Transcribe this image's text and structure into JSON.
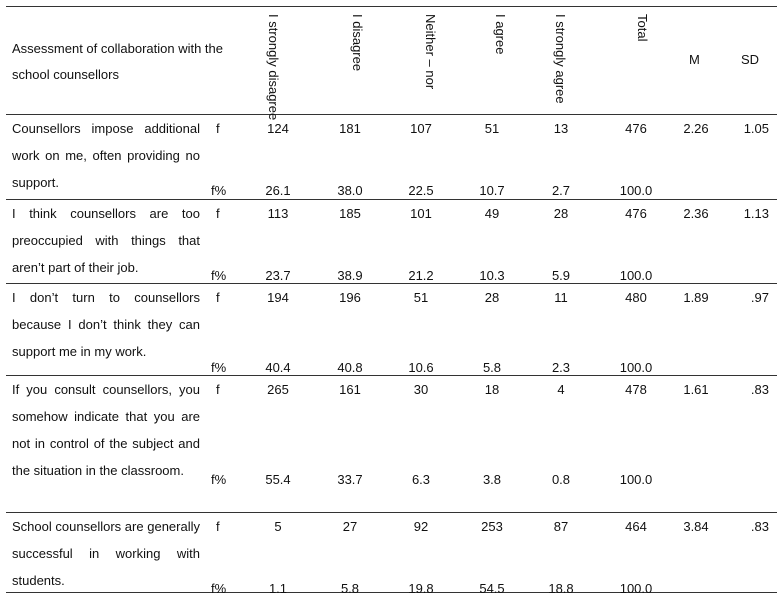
{
  "header": {
    "title": "Assessment of collaboration with the school counsellors",
    "col_strongly_disagree": "I strongly disagree",
    "col_disagree": "I disagree",
    "col_neither": "Neither – nor",
    "col_agree": "I agree",
    "col_strongly_agree": "I strongly agree",
    "col_total": "Total",
    "col_m": "M",
    "col_sd": "SD"
  },
  "rows": [
    {
      "statement": "Counsellors impose additional work on me, often providing no support.",
      "f_label": "f",
      "fp_label": "f%",
      "f": [
        "124",
        "181",
        "107",
        "51",
        "13",
        "476"
      ],
      "fp": [
        "26.1",
        "38.0",
        "22.5",
        "10.7",
        "2.7",
        "100.0"
      ],
      "m": "2.26",
      "sd": "1.05"
    },
    {
      "statement": "I think counsellors are too preoccupied with things that aren’t part of their job.",
      "f_label": "f",
      "fp_label": "f%",
      "f": [
        "113",
        "185",
        "101",
        "49",
        "28",
        "476"
      ],
      "fp": [
        "23.7",
        "38.9",
        "21.2",
        "10.3",
        "5.9",
        "100.0"
      ],
      "m": "2.36",
      "sd": "1.13"
    },
    {
      "statement": "I don’t turn to counsellors because I don’t think they can support me in my work.",
      "f_label": "f",
      "fp_label": "f%",
      "f": [
        "194",
        "196",
        "51",
        "28",
        "11",
        "480"
      ],
      "fp": [
        "40.4",
        "40.8",
        "10.6",
        "5.8",
        "2.3",
        "100.0"
      ],
      "m": "1.89",
      "sd": ".97"
    },
    {
      "statement": "If you consult counsellors, you somehow indicate that you are not in control of the subject and the situation in the classroom.",
      "f_label": "f",
      "fp_label": "f%",
      "f": [
        "265",
        "161",
        "30",
        "18",
        "4",
        "478"
      ],
      "fp": [
        "55.4",
        "33.7",
        "6.3",
        "3.8",
        "0.8",
        "100.0"
      ],
      "m": "1.61",
      "sd": ".83"
    },
    {
      "statement": "School counsellors are generally successful in working with students.",
      "f_label": "f",
      "fp_label": "f%",
      "f": [
        "5",
        "27",
        "92",
        "253",
        "87",
        "464"
      ],
      "fp": [
        "1.1",
        "5.8",
        "19.8",
        "54.5",
        "18.8",
        "100.0"
      ],
      "m": "3.84",
      "sd": ".83"
    }
  ]
}
